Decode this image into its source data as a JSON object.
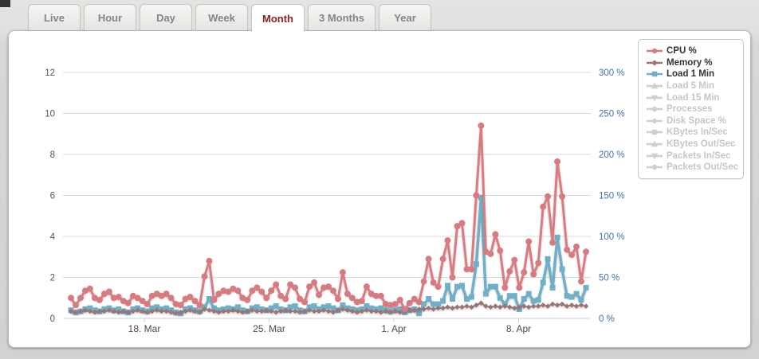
{
  "tabs": {
    "active": "Month",
    "items": [
      {
        "label": "Live"
      },
      {
        "label": "Hour"
      },
      {
        "label": "Day"
      },
      {
        "label": "Week"
      },
      {
        "label": "Month"
      },
      {
        "label": "3 Months"
      },
      {
        "label": "Year"
      }
    ]
  },
  "legend": {
    "items": [
      {
        "label": "CPU %",
        "symbol": "circle",
        "color": "#d87b80",
        "active": true
      },
      {
        "label": "Memory %",
        "symbol": "diamond",
        "color": "#9b7476",
        "active": true
      },
      {
        "label": "Load 1 Min",
        "symbol": "square",
        "color": "#6fafc7",
        "active": true
      },
      {
        "label": "Load 5 Min",
        "symbol": "triangle-up",
        "color": "#cfcfcf",
        "active": false
      },
      {
        "label": "Load 15 Min",
        "symbol": "triangle-down",
        "color": "#cfcfcf",
        "active": false
      },
      {
        "label": "Processes",
        "symbol": "circle",
        "color": "#cfcfcf",
        "active": false
      },
      {
        "label": "Disk Space %",
        "symbol": "diamond",
        "color": "#cfcfcf",
        "active": false
      },
      {
        "label": "KBytes In/Sec",
        "symbol": "square",
        "color": "#cfcfcf",
        "active": false
      },
      {
        "label": "KBytes Out/Sec",
        "symbol": "triangle-up",
        "color": "#cfcfcf",
        "active": false
      },
      {
        "label": "Packets In/Sec",
        "symbol": "triangle-down",
        "color": "#cfcfcf",
        "active": false
      },
      {
        "label": "Packets Out/Sec",
        "symbol": "circle",
        "color": "#cfcfcf",
        "active": false
      }
    ]
  },
  "chart_data": {
    "type": "line",
    "title": "",
    "x_axis": {
      "tick_labels": [
        "18. Mar",
        "25. Mar",
        "1. Apr",
        "8. Apr"
      ],
      "range_days": [
        "14. Mar",
        "12. Apr"
      ],
      "samples_per_day": 4
    },
    "y_axis_left": {
      "ticks": [
        0,
        2,
        4,
        6,
        8,
        10,
        12
      ],
      "range": [
        0,
        12
      ],
      "grid": true
    },
    "y_axis_right": {
      "tick_labels": [
        "0 %",
        "50 %",
        "100 %",
        "150 %",
        "200 %",
        "250 %",
        "300 %"
      ],
      "range": [
        0,
        300
      ]
    },
    "series": [
      {
        "name": "CPU %",
        "color": "#d87b80",
        "marker": "circle",
        "axis": "right-pct",
        "values": [
          1.0,
          0.65,
          1.0,
          1.35,
          1.45,
          1.0,
          0.9,
          1.2,
          1.3,
          1.0,
          1.05,
          0.85,
          0.75,
          1.1,
          1.0,
          0.85,
          0.7,
          1.1,
          1.2,
          1.1,
          1.2,
          1.0,
          0.7,
          0.65,
          0.95,
          1.05,
          0.85,
          0.65,
          2.05,
          2.8,
          0.9,
          1.2,
          1.35,
          1.3,
          1.45,
          1.35,
          1.0,
          0.9,
          1.35,
          1.5,
          1.3,
          1.0,
          1.35,
          1.65,
          1.1,
          0.95,
          1.65,
          1.5,
          0.95,
          0.8,
          1.55,
          1.75,
          1.15,
          1.5,
          1.55,
          1.35,
          0.95,
          2.25,
          1.2,
          1.0,
          0.8,
          0.85,
          1.55,
          1.2,
          1.1,
          1.1,
          0.7,
          0.65,
          0.7,
          0.9,
          0.45,
          0.75,
          0.95,
          0.8,
          1.8,
          2.9,
          1.75,
          1.55,
          2.9,
          3.8,
          2.0,
          4.5,
          4.65,
          2.4,
          2.4,
          6.0,
          9.4,
          3.25,
          3.15,
          4.1,
          3.3,
          1.5,
          2.3,
          2.85,
          1.5,
          2.25,
          3.75,
          2.15,
          2.7,
          5.45,
          5.95,
          3.7,
          7.65,
          5.95,
          3.35,
          3.1,
          3.5,
          1.8,
          3.25
        ]
      },
      {
        "name": "Memory %",
        "color": "#9b7476",
        "marker": "diamond",
        "axis": "right-pct",
        "values": [
          0.35,
          0.3,
          0.35,
          0.4,
          0.35,
          0.3,
          0.35,
          0.35,
          0.4,
          0.35,
          0.3,
          0.35,
          0.3,
          0.35,
          0.4,
          0.35,
          0.3,
          0.35,
          0.4,
          0.35,
          0.35,
          0.3,
          0.25,
          0.3,
          0.35,
          0.4,
          0.35,
          0.3,
          0.45,
          0.4,
          0.35,
          0.3,
          0.35,
          0.35,
          0.4,
          0.35,
          0.3,
          0.35,
          0.4,
          0.35,
          0.35,
          0.4,
          0.35,
          0.3,
          0.35,
          0.4,
          0.35,
          0.35,
          0.3,
          0.35,
          0.4,
          0.35,
          0.35,
          0.4,
          0.35,
          0.3,
          0.4,
          0.45,
          0.4,
          0.35,
          0.3,
          0.35,
          0.4,
          0.35,
          0.35,
          0.3,
          0.35,
          0.3,
          0.35,
          0.3,
          0.35,
          0.4,
          0.4,
          0.45,
          0.45,
          0.5,
          0.45,
          0.5,
          0.5,
          0.55,
          0.5,
          0.55,
          0.55,
          0.6,
          0.55,
          0.65,
          0.75,
          0.6,
          0.55,
          0.6,
          0.55,
          0.6,
          0.55,
          0.5,
          0.55,
          0.6,
          0.55,
          0.6,
          0.6,
          0.65,
          0.6,
          0.7,
          0.65,
          0.7,
          0.6,
          0.65,
          0.6,
          0.65,
          0.6
        ]
      },
      {
        "name": "Load 1 Min",
        "color": "#6fafc7",
        "marker": "square",
        "axis": "left",
        "values": [
          0.4,
          0.3,
          0.35,
          0.45,
          0.5,
          0.4,
          0.35,
          0.45,
          0.5,
          0.4,
          0.45,
          0.35,
          0.3,
          0.45,
          0.5,
          0.4,
          0.35,
          0.5,
          0.55,
          0.45,
          0.5,
          0.4,
          0.3,
          0.25,
          0.45,
          0.5,
          0.4,
          0.35,
          0.55,
          0.95,
          0.5,
          0.4,
          0.45,
          0.5,
          0.45,
          0.55,
          0.4,
          0.35,
          0.5,
          0.55,
          0.45,
          0.4,
          0.5,
          0.6,
          0.45,
          0.4,
          0.55,
          0.6,
          0.4,
          0.35,
          0.55,
          0.6,
          0.45,
          0.55,
          0.6,
          0.5,
          0.4,
          0.65,
          0.5,
          0.45,
          0.4,
          0.45,
          0.6,
          0.5,
          0.45,
          0.5,
          0.4,
          0.35,
          0.4,
          0.45,
          0.3,
          0.4,
          0.45,
          0.25,
          0.7,
          0.95,
          0.7,
          0.7,
          0.85,
          1.6,
          0.95,
          1.55,
          1.6,
          0.95,
          1.05,
          2.65,
          5.9,
          1.2,
          1.55,
          1.55,
          1.0,
          0.7,
          1.1,
          1.1,
          0.45,
          0.95,
          1.2,
          0.85,
          0.9,
          1.75,
          2.9,
          1.5,
          3.95,
          2.4,
          1.1,
          1.05,
          1.2,
          0.9,
          1.5
        ]
      }
    ],
    "hidden_series": [
      "Load 5 Min",
      "Load 15 Min",
      "Processes",
      "Disk Space %",
      "KBytes In/Sec",
      "KBytes Out/Sec",
      "Packets In/Sec",
      "Packets Out/Sec"
    ],
    "legend_position": "top-right"
  },
  "colors": {
    "grid_line": "#d8d8d8",
    "x_axis_line": "#c0d0e0",
    "left_tick_text": "#555555",
    "right_tick_text": "#4572a7",
    "x_tick_text": "#4a4a4a",
    "active_tab_text": "#8b2424",
    "inactive_tab_text": "#848484"
  }
}
